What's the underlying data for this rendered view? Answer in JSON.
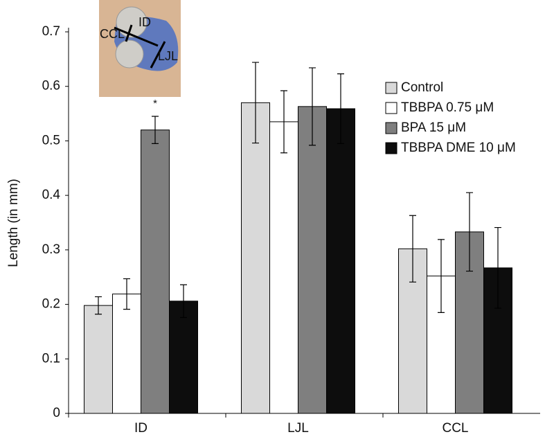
{
  "chart_data": {
    "type": "bar",
    "y_label": "Length (in mm)",
    "categories": [
      "ID",
      "LJL",
      "CCL"
    ],
    "series": [
      {
        "name": "Control",
        "color": "#d9d9d9",
        "values": [
          0.198,
          0.57,
          0.302
        ],
        "errors": [
          0.016,
          0.074,
          0.061
        ]
      },
      {
        "name": "TBBPA 0.75 μM",
        "color": "#ffffff",
        "values": [
          0.219,
          0.535,
          0.252
        ],
        "errors": [
          0.028,
          0.057,
          0.067
        ]
      },
      {
        "name": "BPA 15 μM",
        "color": "#7f7f7f",
        "values": [
          0.52,
          0.563,
          0.333
        ],
        "errors": [
          0.025,
          0.071,
          0.072
        ]
      },
      {
        "name": "TBBPA DME 10 μM",
        "color": "#0d0d0d",
        "values": [
          0.206,
          0.559,
          0.267
        ],
        "errors": [
          0.03,
          0.064,
          0.074
        ]
      }
    ],
    "ylim": [
      0,
      0.7
    ],
    "yticks": [
      0,
      0.1,
      0.2,
      0.3,
      0.4,
      0.5,
      0.6,
      0.7
    ],
    "grid": false,
    "legend": "right",
    "annotations": [
      {
        "text": "*",
        "category": 0,
        "series": 2
      }
    ],
    "inset_labels": [
      "CCL",
      "ID",
      "LJL"
    ]
  }
}
